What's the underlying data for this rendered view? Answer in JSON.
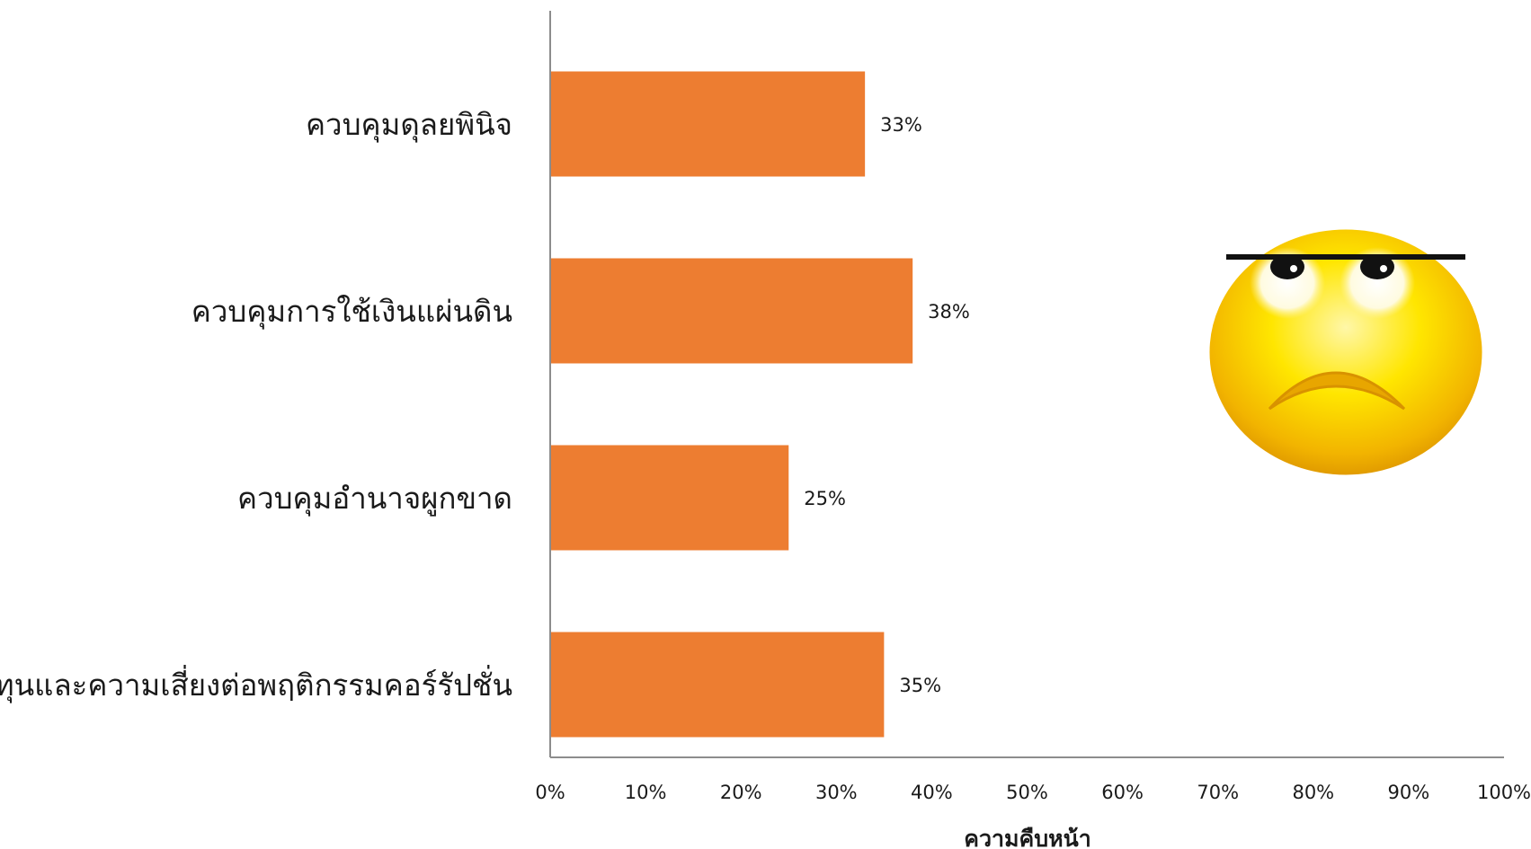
{
  "chart_data": {
    "type": "bar",
    "orientation": "horizontal",
    "categories": [
      "ควบคุมดุลยพินิจ",
      "ควบคุมการใช้เงินแผ่นดิน",
      "ควบคุมอำนาจผูกขาด",
      "เพิ่มต้นทุนและความเสี่ยงต่อพฤติกรรมคอร์รัปชั่น"
    ],
    "values": [
      33,
      38,
      25,
      35
    ],
    "data_labels": [
      "33%",
      "38%",
      "25%",
      "35%"
    ],
    "xlabel": "ความคืบหน้า",
    "ylabel": "",
    "xlim": [
      0,
      100
    ],
    "x_ticks": [
      "0%",
      "10%",
      "20%",
      "30%",
      "40%",
      "50%",
      "60%",
      "70%",
      "80%",
      "90%",
      "100%"
    ],
    "grid": false,
    "legend": "none",
    "bar_color": "#ED7D31",
    "axis_color": "#8c8c8c"
  },
  "decoration": {
    "icon": "sad-face-emoji-icon"
  }
}
